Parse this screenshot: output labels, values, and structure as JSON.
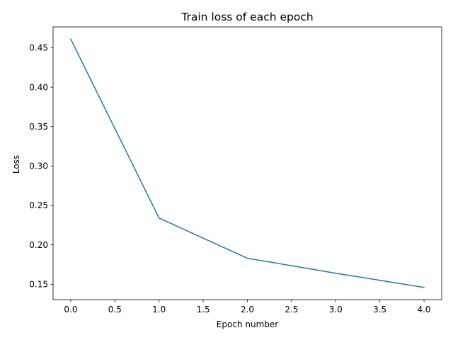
{
  "chart_data": {
    "type": "line",
    "title": "Train loss of each epoch",
    "xlabel": "Epoch number",
    "ylabel": "Loss",
    "xlim": [
      -0.2,
      4.2
    ],
    "ylim": [
      0.1305,
      0.4765
    ],
    "xticks": [
      0.0,
      0.5,
      1.0,
      1.5,
      2.0,
      2.5,
      3.0,
      3.5,
      4.0
    ],
    "xtick_labels": [
      "0.0",
      "0.5",
      "1.0",
      "1.5",
      "2.0",
      "2.5",
      "3.0",
      "3.5",
      "4.0"
    ],
    "yticks": [
      0.15,
      0.2,
      0.25,
      0.3,
      0.35,
      0.4,
      0.45
    ],
    "ytick_labels": [
      "0.15",
      "0.20",
      "0.25",
      "0.30",
      "0.35",
      "0.40",
      "0.45"
    ],
    "grid": false,
    "legend": "none",
    "series": [
      {
        "color": "#1f77b4",
        "x": [
          0,
          1,
          2,
          3,
          4
        ],
        "y": [
          0.461,
          0.234,
          0.183,
          0.164,
          0.146
        ]
      }
    ]
  }
}
